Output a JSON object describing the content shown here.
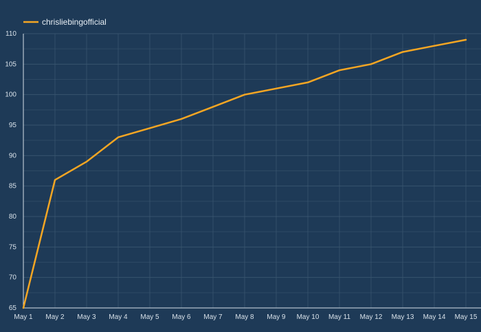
{
  "chart_data": {
    "type": "line",
    "x": [
      "May 1",
      "May 2",
      "May 3",
      "May 4",
      "May 5",
      "May 6",
      "May 7",
      "May 8",
      "May 9",
      "May 10",
      "May 11",
      "May 12",
      "May 13",
      "May 14",
      "May 15"
    ],
    "series": [
      {
        "name": "chrisliebingofficial",
        "color": "#f5a623",
        "values": [
          65,
          86,
          89,
          93,
          94.5,
          96,
          98,
          100,
          101,
          102,
          104,
          105,
          107,
          108,
          109
        ]
      }
    ],
    "y_ticks": [
      65,
      70,
      75,
      80,
      85,
      90,
      95,
      100,
      105,
      110
    ],
    "ylim": [
      65,
      110
    ],
    "grid": true,
    "legend": "top-left",
    "background_color": "#1e3a57",
    "grid_color": "#3a5670"
  }
}
